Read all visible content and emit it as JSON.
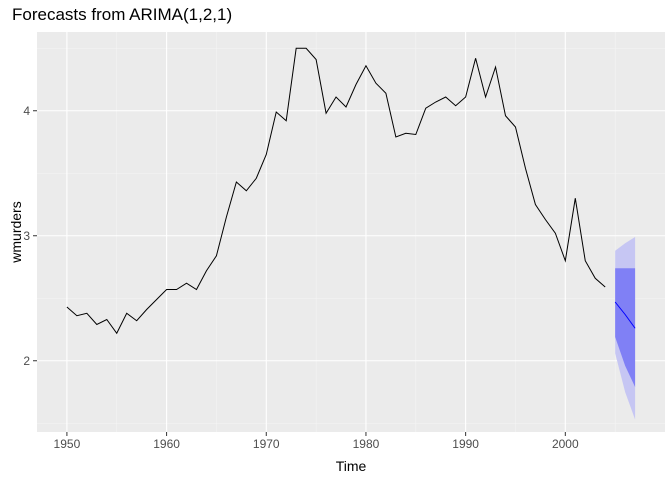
{
  "chart_data": {
    "type": "line",
    "title": "Forecasts from ARIMA(1,2,1)",
    "xlabel": "Time",
    "ylabel": "wmurders",
    "xlim": [
      1947,
      2010
    ],
    "ylim": [
      1.43,
      4.63
    ],
    "x_ticks": [
      1950,
      1960,
      1970,
      1980,
      1990,
      2000
    ],
    "y_ticks": [
      2,
      3,
      4
    ],
    "grid": true,
    "colors": {
      "panel": "#ebebeb",
      "grid_major": "#ffffff",
      "line": "#000000",
      "forecast_line": "#0000ff",
      "band_80": "#8080f5",
      "band_95": "#c6c6f3"
    },
    "series": [
      {
        "x": [
          1950,
          1951,
          1952,
          1953,
          1954,
          1955,
          1956,
          1957,
          1958,
          1959,
          1960,
          1961,
          1962,
          1963,
          1964,
          1965,
          1966,
          1967,
          1968,
          1969,
          1970,
          1971,
          1972,
          1973,
          1974,
          1975,
          1976,
          1977,
          1978,
          1979,
          1980,
          1981,
          1982,
          1983,
          1984,
          1985,
          1986,
          1987,
          1988,
          1989,
          1990,
          1991,
          1992,
          1993,
          1994,
          1995,
          1996,
          1997,
          1998,
          1999,
          2000,
          2001,
          2002,
          2003,
          2004
        ],
        "values": [
          2.43,
          2.36,
          2.38,
          2.29,
          2.33,
          2.22,
          2.38,
          2.32,
          2.41,
          2.49,
          2.57,
          2.57,
          2.62,
          2.57,
          2.72,
          2.84,
          3.15,
          3.43,
          3.36,
          3.46,
          3.65,
          3.99,
          3.92,
          4.5,
          4.5,
          4.41,
          3.98,
          4.11,
          4.03,
          4.21,
          4.36,
          4.22,
          4.14,
          3.79,
          3.82,
          3.81,
          4.02,
          4.07,
          4.11,
          4.04,
          4.11,
          4.42,
          4.11,
          4.35,
          3.96,
          3.87,
          3.54,
          3.25,
          3.13,
          3.02,
          2.8,
          3.3,
          2.8,
          2.66,
          2.59
        ]
      }
    ],
    "forecast": {
      "x": [
        2005,
        2006,
        2007
      ],
      "mean": [
        2.47,
        2.37,
        2.26
      ],
      "lo80": [
        2.19,
        1.96,
        1.79
      ],
      "hi80": [
        2.74,
        2.74,
        2.74
      ],
      "lo95": [
        2.06,
        1.75,
        1.53
      ],
      "hi95": [
        2.88,
        2.94,
        2.99
      ]
    }
  }
}
